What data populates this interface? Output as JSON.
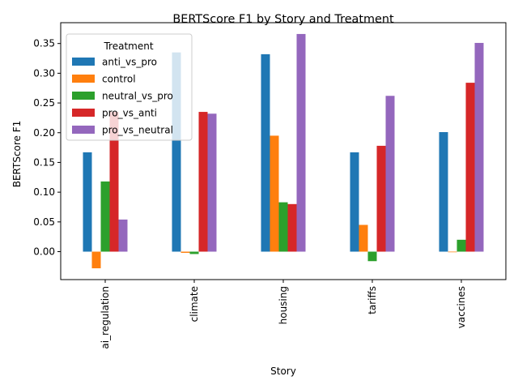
{
  "chart_data": {
    "type": "bar",
    "title": "BERTScore F1 by Story and Treatment",
    "xlabel": "Story",
    "ylabel": "BERTScore F1",
    "categories": [
      "ai_regulation",
      "climate",
      "housing",
      "tariffs",
      "vaccines"
    ],
    "ylim": [
      -0.047,
      0.385
    ],
    "yticks": [
      "0.00",
      "0.05",
      "0.10",
      "0.15",
      "0.20",
      "0.25",
      "0.30",
      "0.35"
    ],
    "grid": false,
    "legend": {
      "title": "Treatment",
      "placement": "top-left"
    },
    "series": [
      {
        "name": "anti_vs_pro",
        "color": "#1f77b4",
        "values": [
          0.167,
          0.335,
          0.332,
          0.167,
          0.201
        ]
      },
      {
        "name": "control",
        "color": "#ff7f0e",
        "values": [
          -0.028,
          -0.002,
          0.195,
          0.045,
          -0.001
        ]
      },
      {
        "name": "neutral_vs_pro",
        "color": "#2ca02c",
        "values": [
          0.118,
          -0.004,
          0.083,
          -0.016,
          0.02
        ]
      },
      {
        "name": "pro_vs_anti",
        "color": "#d62728",
        "values": [
          0.235,
          0.235,
          0.08,
          0.178,
          0.284
        ]
      },
      {
        "name": "pro_vs_neutral",
        "color": "#9467bd",
        "values": [
          0.054,
          0.232,
          0.366,
          0.262,
          0.351
        ]
      }
    ]
  }
}
